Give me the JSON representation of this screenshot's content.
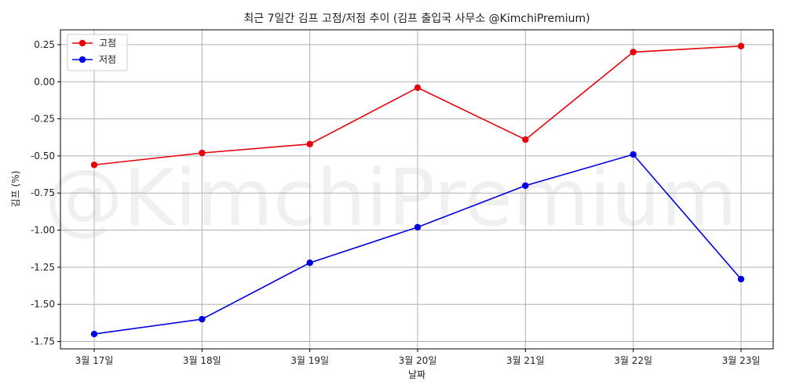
{
  "chart_data": {
    "type": "line",
    "title": "최근 7일간 김프 고점/저점 추이 (김프 출입국 사무소 @KimchiPremium)",
    "xlabel": "날짜",
    "ylabel": "김프 (%)",
    "categories": [
      "3월 17일",
      "3월 18일",
      "3월 19일",
      "3월 20일",
      "3월 21일",
      "3월 22일",
      "3월 23일"
    ],
    "series": [
      {
        "name": "고점",
        "color": "#e8000b",
        "values": [
          -0.56,
          -0.48,
          -0.42,
          -0.04,
          -0.39,
          0.2,
          0.24
        ]
      },
      {
        "name": "저점",
        "color": "#0000e6",
        "values": [
          -1.7,
          -1.6,
          -1.22,
          -0.98,
          -0.7,
          -0.49,
          -1.33
        ]
      }
    ],
    "ylim": [
      -1.8,
      0.35
    ],
    "yticks": [
      0.25,
      0.0,
      -0.25,
      -0.5,
      -0.75,
      -1.0,
      -1.25,
      -1.5,
      -1.75
    ],
    "ytick_labels": [
      "0.25",
      "0.00",
      "-0.25",
      "-0.50",
      "-0.75",
      "-1.00",
      "-1.25",
      "-1.50",
      "-1.75"
    ],
    "grid": true,
    "legend": "top-left",
    "watermark": "@KimchiPremium"
  }
}
